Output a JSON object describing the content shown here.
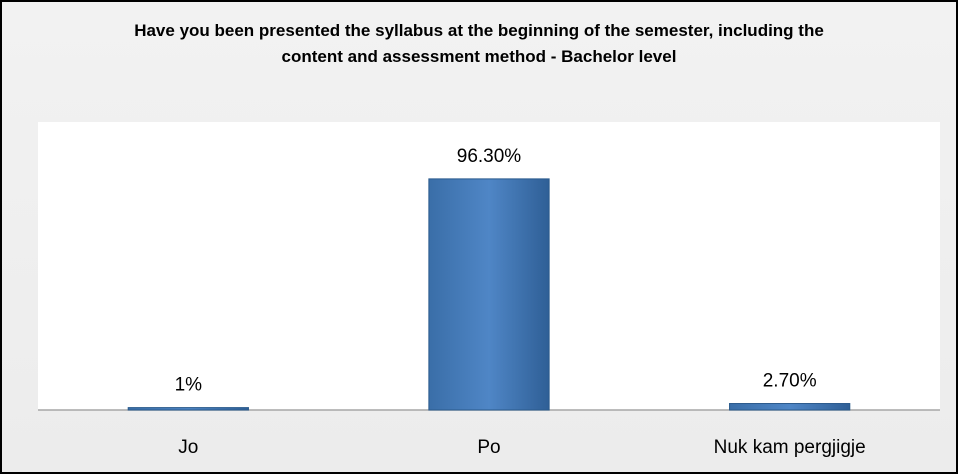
{
  "chart_data": {
    "type": "bar",
    "title": "Have you been presented the syllabus at the beginning of the semester, including the content and assessment method - Bachelor level",
    "categories": [
      "Jo",
      "Po",
      "Nuk kam pergjigje"
    ],
    "values": [
      1,
      96.3,
      2.7
    ],
    "value_labels": [
      "1%",
      "96.30%",
      "2.70%"
    ],
    "color": "#4f81bd",
    "ylim": [
      0,
      120
    ]
  }
}
